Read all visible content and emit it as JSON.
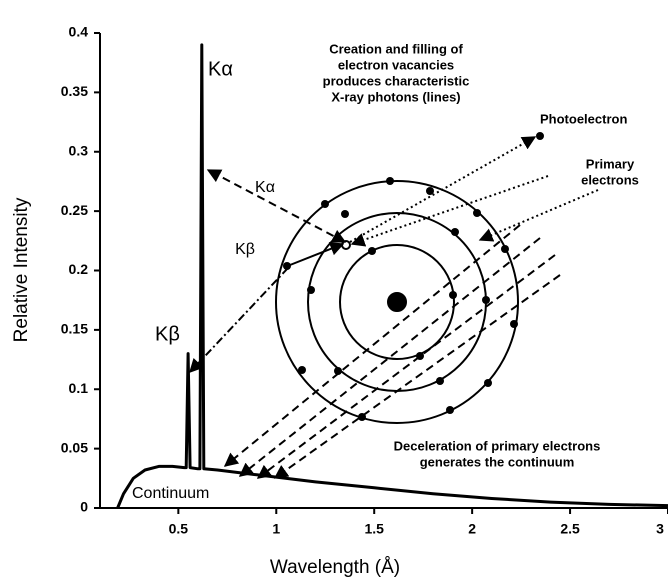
{
  "chart_data": {
    "type": "line",
    "xlabel": "Wavelength (Å)",
    "ylabel": "Relative Intensity",
    "x": [
      0.19,
      0.22,
      0.27,
      0.33,
      0.4,
      0.47,
      0.53,
      0.54,
      0.55,
      0.56,
      0.6,
      0.61,
      0.62,
      0.63,
      0.7,
      0.9,
      1.2,
      1.5,
      1.8,
      2.1,
      2.4,
      2.7,
      3.0
    ],
    "values": [
      0,
      0.012,
      0.025,
      0.032,
      0.035,
      0.035,
      0.034,
      0.034,
      0.13,
      0.034,
      0.033,
      0.033,
      0.39,
      0.033,
      0.032,
      0.028,
      0.022,
      0.017,
      0.012,
      0.008,
      0.005,
      0.003,
      0.002
    ],
    "color": "#000000",
    "xlim": [
      0.1,
      3
    ],
    "ylim": [
      0,
      0.4
    ],
    "xticks": [
      0.5,
      1,
      1.5,
      2,
      2.5,
      3
    ],
    "yticks": [
      0,
      0.05,
      0.1,
      0.15,
      0.2,
      0.25,
      0.3,
      0.35,
      0.4
    ],
    "annotations": [
      [
        "Kα"
      ],
      [
        "Kβ"
      ],
      [
        "Creation and filling of",
        "electron vacancies",
        "produces characteristic",
        "X-ray photons (lines)"
      ],
      [
        "Photoelectron"
      ],
      [
        "Primary",
        "electrons"
      ],
      [
        "Kα"
      ],
      [
        "Kβ"
      ],
      [
        "Deceleration of primary electrons",
        "generates the continuum"
      ],
      [
        "Continuum"
      ]
    ]
  }
}
